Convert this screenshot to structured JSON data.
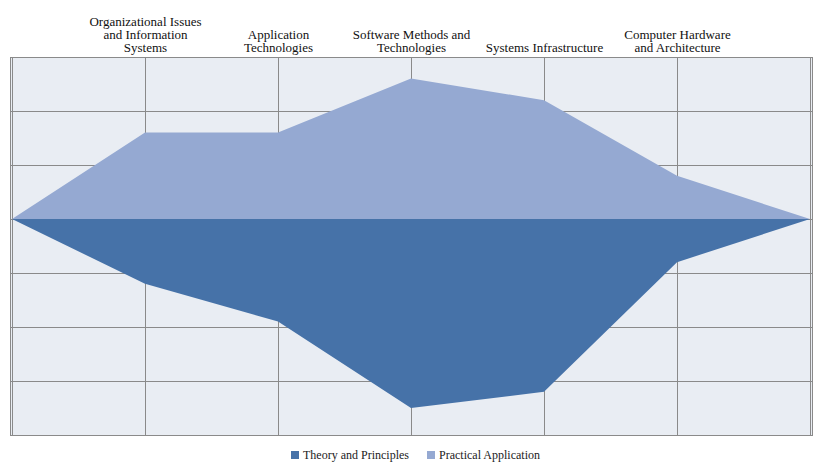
{
  "chart_data": {
    "type": "area",
    "categories": [
      null,
      "Organizational Issues and Information Systems",
      "Application Technologies",
      "Software Methods and Technologies",
      "Systems Infrastructure",
      "Computer Hardware and Architecture",
      null
    ],
    "series": [
      {
        "name": "Theory and Principles",
        "color": "#4672a8",
        "values": [
          0,
          -1.2,
          -1.9,
          -3.5,
          -3.2,
          -0.8,
          0
        ]
      },
      {
        "name": "Practical Application",
        "color": "#95a9d2",
        "values": [
          0,
          1.6,
          1.6,
          2.6,
          2.2,
          0.8,
          0
        ]
      }
    ],
    "ylim": [
      -4,
      3
    ],
    "yticks": [
      -4,
      -3,
      -2,
      -1,
      0,
      1,
      2,
      3
    ],
    "grid": true,
    "tick_labels": "x",
    "legend": "bottom"
  }
}
